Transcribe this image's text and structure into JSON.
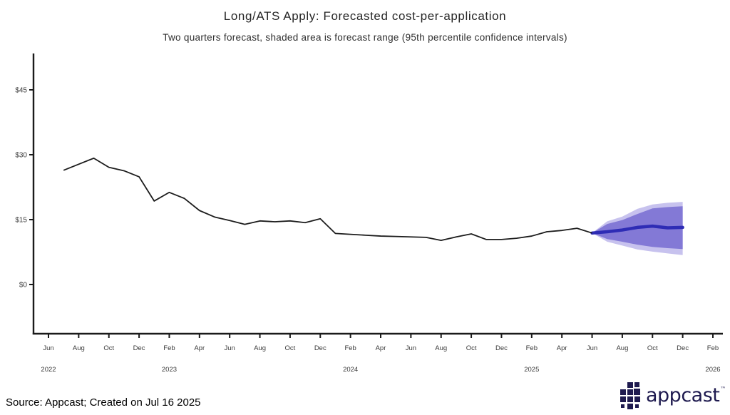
{
  "chart_data": {
    "type": "line",
    "title": "Long/ATS Apply: Forecasted cost-per-application",
    "subtitle": "Two quarters forecast, shaded area is forecast range (95th percentile confidence intervals)",
    "grid": false,
    "legend": "none",
    "y_axis": {
      "tick_labels": [
        "$0",
        "$15",
        "$30",
        "$45"
      ],
      "tick_values": [
        0,
        15,
        30,
        45
      ],
      "ylim": [
        0,
        45
      ],
      "unit": "USD cost-per-application"
    },
    "x_axis": {
      "start_month": "Jun 2022",
      "months_per_tick": 2,
      "tick_labels": [
        "Jun",
        "Aug",
        "Oct",
        "Dec",
        "Feb",
        "Apr",
        "Jun",
        "Aug",
        "Oct",
        "Dec",
        "Feb",
        "Apr",
        "Jun",
        "Aug",
        "Oct",
        "Dec",
        "Feb",
        "Apr",
        "Jun",
        "Aug",
        "Oct",
        "Dec",
        "Feb"
      ],
      "tick_month_offsets": [
        0,
        2,
        4,
        6,
        8,
        10,
        12,
        14,
        16,
        18,
        20,
        22,
        24,
        26,
        28,
        30,
        32,
        34,
        36,
        38,
        40,
        42,
        44
      ],
      "year_labels": [
        {
          "label": "2022",
          "month_offset": 0
        },
        {
          "label": "2023",
          "month_offset": 8
        },
        {
          "label": "2024",
          "month_offset": 20
        },
        {
          "label": "2025",
          "month_offset": 32
        },
        {
          "label": "2026",
          "month_offset": 44
        }
      ]
    },
    "series": [
      {
        "name": "actual-cost-per-application",
        "start_month": "Jul 2022",
        "start_month_offset": 1,
        "values": [
          26.4,
          27.8,
          29.2,
          27.1,
          26.3,
          24.9,
          19.3,
          21.3,
          19.9,
          17.1,
          15.6,
          14.8,
          13.9,
          14.7,
          14.5,
          14.7,
          14.3,
          15.2,
          11.8,
          11.6,
          11.4,
          11.2,
          11.1,
          11.0,
          10.9,
          10.2,
          11.0,
          11.7,
          10.4,
          10.4,
          10.7,
          11.2,
          12.2,
          12.5,
          13.0,
          11.9
        ]
      },
      {
        "name": "forecast-cost-per-application",
        "start_month": "Jun 2025",
        "start_month_offset": 36,
        "values": [
          11.9,
          12.2,
          12.6,
          13.2,
          13.5,
          13.1,
          13.2
        ],
        "inner_band_high": [
          11.9,
          14.0,
          14.9,
          16.3,
          17.6,
          17.9,
          18.1
        ],
        "inner_band_low": [
          11.9,
          10.5,
          9.9,
          9.2,
          8.7,
          8.4,
          8.2
        ],
        "outer_band_high": [
          11.9,
          14.6,
          15.7,
          17.5,
          18.5,
          18.9,
          19.1
        ],
        "outer_band_low": [
          11.9,
          9.9,
          9.0,
          8.1,
          7.6,
          7.2,
          6.8
        ]
      }
    ],
    "colors": {
      "actual_line": "#1c1c1c",
      "forecast_line": "#2e2cb5",
      "inner_band": "#8379d6",
      "outer_band": "#c7c2ee",
      "axis": "#1a1a1a",
      "tick_text": "#3a3a3a"
    }
  },
  "footer": {
    "source": "Source: Appcast; Created on Jul 16 2025"
  },
  "logo": {
    "icon": "appcast-grid-icon",
    "text": "appcast",
    "tm": "™"
  }
}
